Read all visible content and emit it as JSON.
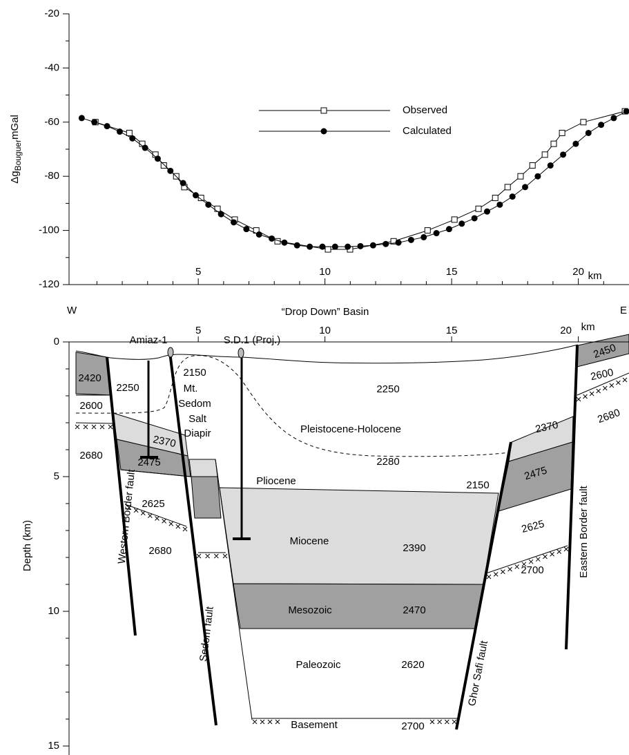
{
  "chart_data": {
    "type": "line",
    "ylabel_parts": [
      "Δg",
      "Bouguer",
      "mGal"
    ],
    "x_unit": "km",
    "xlim": [
      -0.1,
      22
    ],
    "ylim": [
      -120,
      -20
    ],
    "xticks": [
      5,
      10,
      15,
      20
    ],
    "yticks": [
      -120,
      -100,
      -80,
      -60,
      -40,
      -20
    ],
    "xminorticks": [
      1,
      2,
      3,
      4,
      6,
      7,
      8,
      9,
      11,
      12,
      13,
      14,
      16,
      17,
      18,
      19,
      21
    ],
    "yminorticks": [
      -110,
      -90,
      -70,
      -50,
      -30
    ],
    "legend": "top-center",
    "series": [
      {
        "name": "Observed",
        "color": "#000000",
        "marker": "open-square",
        "x": [
          0.94,
          2.28,
          2.79,
          3.31,
          3.64,
          4.13,
          4.45,
          5.11,
          5.76,
          6.44,
          7.29,
          8.13,
          10.12,
          10.99,
          12.71,
          14.05,
          15.11,
          16.06,
          16.72,
          17.21,
          17.72,
          18.19,
          18.68,
          19.03,
          19.36,
          20.2,
          21.84
        ],
        "values": [
          -60,
          -64,
          -68,
          -72,
          -76,
          -80,
          -84,
          -88,
          -92,
          -96,
          -100,
          -104,
          -107,
          -107,
          -104,
          -100,
          -96,
          -92,
          -88,
          -84,
          -80,
          -76,
          -72,
          -68,
          -64,
          -60,
          -56
        ]
      },
      {
        "name": "Calculated",
        "color": "#000000",
        "marker": "filled-circle",
        "x": [
          0.4,
          0.9,
          1.4,
          1.9,
          2.4,
          2.9,
          3.4,
          3.9,
          4.4,
          4.9,
          5.4,
          5.9,
          6.4,
          6.9,
          7.4,
          7.9,
          8.4,
          8.9,
          9.4,
          9.9,
          10.4,
          10.9,
          11.4,
          11.9,
          12.4,
          12.9,
          13.4,
          13.9,
          14.4,
          14.9,
          15.4,
          15.9,
          16.4,
          16.9,
          17.4,
          17.9,
          18.4,
          18.9,
          19.4,
          19.9,
          20.4,
          20.9,
          21.4,
          21.9
        ],
        "values": [
          -58.5,
          -60,
          -61.5,
          -63.5,
          -66,
          -69.5,
          -73.5,
          -78,
          -82.5,
          -87,
          -90.5,
          -94,
          -97,
          -99.5,
          -101.5,
          -103,
          -104.5,
          -105.5,
          -106,
          -106,
          -106,
          -106,
          -105.8,
          -105.5,
          -105,
          -104.5,
          -103.5,
          -102.5,
          -101,
          -99.5,
          -97.5,
          -95.5,
          -93,
          -90.5,
          -87.5,
          -84,
          -80,
          -76,
          -72,
          -68,
          -64,
          -61,
          -58.5,
          -56
        ]
      }
    ]
  },
  "section": {
    "title": "“Drop Down” Basin",
    "west": "W",
    "east": "E",
    "depth_label": "Depth (km)",
    "depth_ticks": [
      0,
      5,
      10,
      15
    ],
    "depth_minor": [
      1,
      2,
      3,
      4,
      6,
      7,
      8,
      9,
      11,
      12,
      13,
      14
    ],
    "distance_ticks": [
      5,
      10,
      15,
      20
    ],
    "distance_unit": "km",
    "wells": [
      "Amiaz-1",
      "S.D.1 (Proj.)"
    ],
    "labels": [
      "2420",
      "2250",
      "2150",
      "Mt.",
      "Sedom",
      "Salt",
      "Diapir",
      "2250",
      "2600",
      "Pleistocene-Holocene",
      "2370",
      "2680",
      "2475",
      "2280",
      "Pliocene",
      "2150",
      "2625",
      "Miocene",
      "2390",
      "2680",
      "Mesozoic",
      "2470",
      "Paleozoic",
      "2620",
      "Basement",
      "2700",
      "2450",
      "2600",
      "2680",
      "2370",
      "2475",
      "2625",
      "2700"
    ],
    "faults": [
      "Western Border fault",
      "Sedom fault",
      "Ghor Safi fault",
      "Eastern Border fault"
    ]
  }
}
